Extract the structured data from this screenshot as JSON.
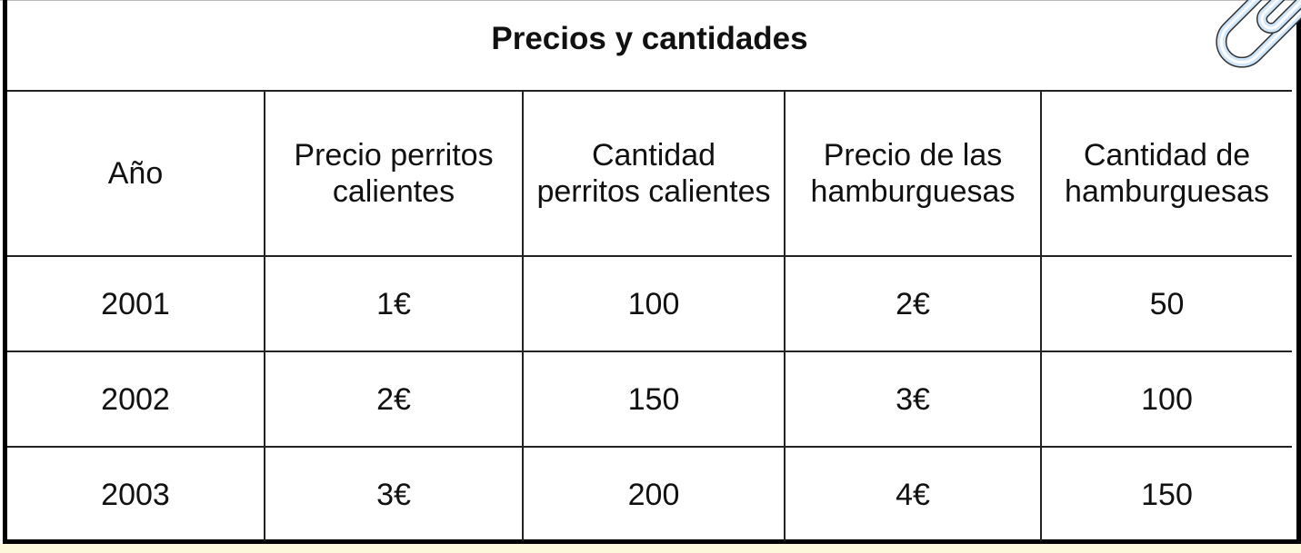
{
  "table": {
    "title": "Precios y cantidades",
    "headers": [
      "Año",
      "Precio perritos calientes",
      "Cantidad perritos calientes",
      "Precio de las hamburguesas",
      "Cantidad de hamburguesas"
    ],
    "rows": [
      [
        "2001",
        "1€",
        "100",
        "2€",
        "50"
      ],
      [
        "2002",
        "2€",
        "150",
        "3€",
        "100"
      ],
      [
        "2003",
        "3€",
        "200",
        "4€",
        "150"
      ]
    ]
  },
  "icons": {
    "attachment": "paperclip-icon"
  }
}
